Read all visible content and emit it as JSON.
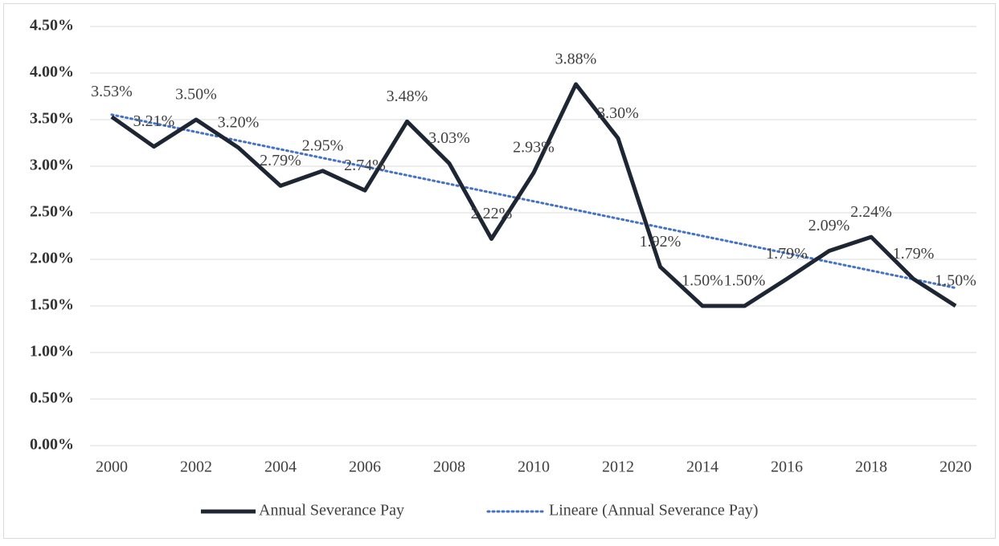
{
  "chart_data": {
    "type": "line",
    "x": [
      2000,
      2001,
      2002,
      2003,
      2004,
      2005,
      2006,
      2007,
      2008,
      2009,
      2010,
      2011,
      2012,
      2013,
      2014,
      2015,
      2016,
      2017,
      2018,
      2019,
      2020
    ],
    "xlim": [
      2000,
      2020
    ],
    "xticks": [
      2000,
      2002,
      2004,
      2006,
      2008,
      2010,
      2012,
      2014,
      2016,
      2018,
      2020
    ],
    "ylim": [
      0,
      4.5
    ],
    "yticks": [
      {
        "value": 0,
        "label": "0.00%"
      },
      {
        "value": 0.5,
        "label": "0.50%"
      },
      {
        "value": 1,
        "label": "1.00%"
      },
      {
        "value": 1.5,
        "label": "1.50%"
      },
      {
        "value": 2,
        "label": "2.00%"
      },
      {
        "value": 2.5,
        "label": "2.50%"
      },
      {
        "value": 3,
        "label": "3.00%"
      },
      {
        "value": 3.5,
        "label": "3.50%"
      },
      {
        "value": 4,
        "label": "4.00%"
      },
      {
        "value": 4.5,
        "label": "4.50%"
      }
    ],
    "grid": true,
    "legend": "bottom",
    "series": [
      {
        "name": "Annual Severance Pay",
        "color": "#1f2633",
        "values": [
          3.53,
          3.21,
          3.5,
          3.2,
          2.79,
          2.95,
          2.74,
          3.48,
          3.03,
          2.22,
          2.93,
          3.88,
          3.3,
          1.92,
          1.5,
          1.5,
          1.79,
          2.09,
          2.24,
          1.79,
          1.5
        ],
        "value_labels": [
          "3.53%",
          "3.21%",
          "3.50%",
          "3.20%",
          "2.79%",
          "2.95%",
          "2.74%",
          "3.48%",
          "3.03%",
          "2.22%",
          "2.93%",
          "3.88%",
          "3.30%",
          "1.92%",
          "1.50%",
          "1.50%",
          "1.79%",
          "2.09%",
          "2.24%",
          "1.79%",
          "1.50%"
        ]
      }
    ],
    "trendline": {
      "name": "Lineare (Annual Severance Pay)",
      "color": "#4472c4",
      "type": "linear",
      "of": 0
    }
  }
}
